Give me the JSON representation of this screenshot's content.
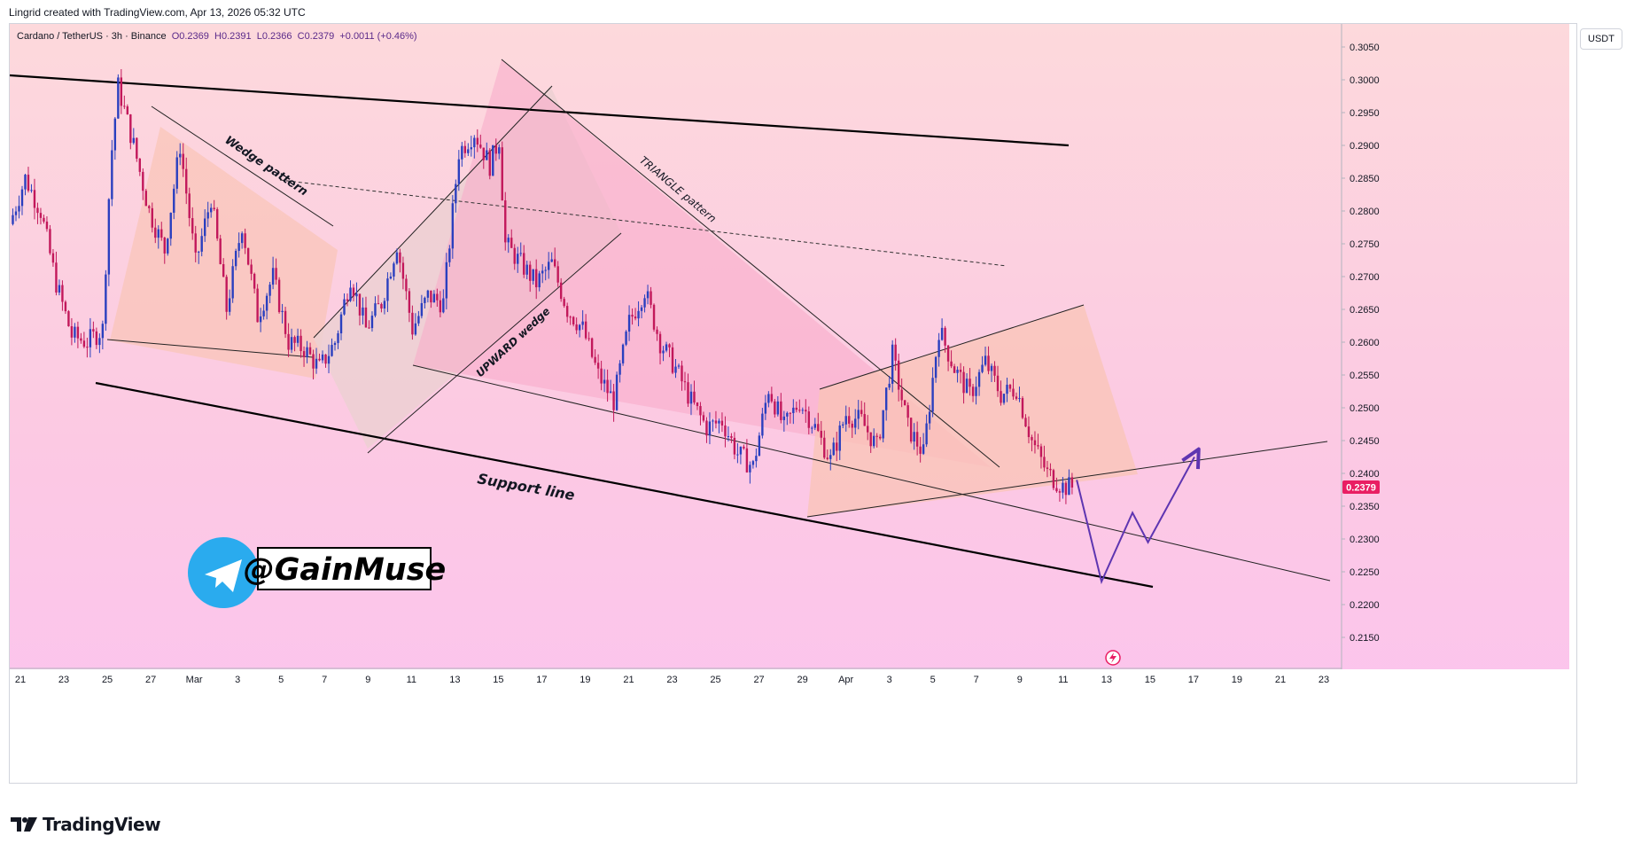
{
  "header": {
    "attribution": "Lingrid created with TradingView.com, Apr 13, 2026 05:32 UTC"
  },
  "footer": {
    "brand": "TradingView"
  },
  "legend": {
    "symbol": "Cardano / TetherUS · 3h · Binance",
    "open": "O0.2369",
    "high": "H0.2391",
    "low": "L0.2366",
    "close": "C0.2379",
    "change": "+0.0011 (+0.46%)"
  },
  "currency_badge": "USDT",
  "annotations": {
    "wedge": "Wedge pattern",
    "upward_wedge": "UPWARD wedge",
    "triangle": "TRIANGLE pattern",
    "support": "Support line",
    "handle": "@GainMuse"
  },
  "colors": {
    "bull": "#2a3fbf",
    "bear": "#c2185b",
    "price_tag": "#e91e63",
    "projection": "#5e35b1",
    "telegram": "#2aabee"
  },
  "chart_data": {
    "type": "candlestick",
    "symbol": "Cardano / TetherUS",
    "interval": "3h",
    "exchange": "Binance",
    "last_price": 0.2379,
    "ylim": [
      0.211,
      0.3075
    ],
    "y_ticks": [
      "0.3050",
      "0.3000",
      "0.2950",
      "0.2900",
      "0.2850",
      "0.2800",
      "0.2750",
      "0.2700",
      "0.2650",
      "0.2600",
      "0.2550",
      "0.2500",
      "0.2450",
      "0.2400",
      "0.2350",
      "0.2300",
      "0.2250",
      "0.2200",
      "0.2150"
    ],
    "x_ticks": [
      "21",
      "23",
      "25",
      "27",
      "Mar",
      "3",
      "5",
      "7",
      "9",
      "11",
      "13",
      "15",
      "17",
      "19",
      "21",
      "23",
      "25",
      "27",
      "29",
      "Apr",
      "3",
      "5",
      "7",
      "9",
      "11",
      "13",
      "15",
      "17",
      "19",
      "21",
      "23"
    ],
    "price_path": [
      [
        0,
        0.278
      ],
      [
        1,
        0.285
      ],
      [
        2,
        0.28
      ],
      [
        3,
        0.269
      ],
      [
        4,
        0.261
      ],
      [
        5,
        0.26
      ],
      [
        6,
        0.262
      ],
      [
        6.5,
        0.287
      ],
      [
        7,
        0.299
      ],
      [
        8,
        0.29
      ],
      [
        9,
        0.28
      ],
      [
        10,
        0.274
      ],
      [
        11,
        0.29
      ],
      [
        12,
        0.272
      ],
      [
        13,
        0.282
      ],
      [
        14,
        0.265
      ],
      [
        15,
        0.278
      ],
      [
        16,
        0.264
      ],
      [
        17,
        0.27
      ],
      [
        18,
        0.26
      ],
      [
        19,
        0.259
      ],
      [
        20,
        0.256
      ],
      [
        21,
        0.26
      ],
      [
        22,
        0.27
      ],
      [
        23,
        0.262
      ],
      [
        24,
        0.266
      ],
      [
        25,
        0.275
      ],
      [
        26,
        0.262
      ],
      [
        27,
        0.267
      ],
      [
        28,
        0.266
      ],
      [
        29,
        0.289
      ],
      [
        30,
        0.292
      ],
      [
        31,
        0.287
      ],
      [
        31.6,
        0.291
      ],
      [
        32,
        0.275
      ],
      [
        33,
        0.272
      ],
      [
        34,
        0.269
      ],
      [
        35,
        0.272
      ],
      [
        36,
        0.265
      ],
      [
        37,
        0.262
      ],
      [
        38,
        0.255
      ],
      [
        39,
        0.251
      ],
      [
        40,
        0.263
      ],
      [
        41,
        0.268
      ],
      [
        42,
        0.26
      ],
      [
        43,
        0.256
      ],
      [
        44,
        0.251
      ],
      [
        45,
        0.247
      ],
      [
        46,
        0.248
      ],
      [
        47,
        0.243
      ],
      [
        48,
        0.241
      ],
      [
        49,
        0.253
      ],
      [
        50,
        0.247
      ],
      [
        51,
        0.251
      ],
      [
        52,
        0.247
      ],
      [
        53,
        0.242
      ],
      [
        54,
        0.249
      ],
      [
        55,
        0.248
      ],
      [
        56,
        0.244
      ],
      [
        57,
        0.258
      ],
      [
        58,
        0.247
      ],
      [
        59,
        0.243
      ],
      [
        60,
        0.262
      ],
      [
        61,
        0.256
      ],
      [
        62,
        0.252
      ],
      [
        63,
        0.257
      ],
      [
        64,
        0.252
      ],
      [
        65,
        0.253
      ],
      [
        66,
        0.245
      ],
      [
        67,
        0.24
      ],
      [
        68,
        0.238
      ],
      [
        68.7,
        0.2379
      ]
    ],
    "x_span": [
      0,
      86
    ],
    "projection_path": [
      [
        68.9,
        0.239
      ],
      [
        70.5,
        0.2235
      ],
      [
        72.5,
        0.234
      ],
      [
        73.5,
        0.2295
      ],
      [
        76.5,
        0.2425
      ]
    ]
  }
}
